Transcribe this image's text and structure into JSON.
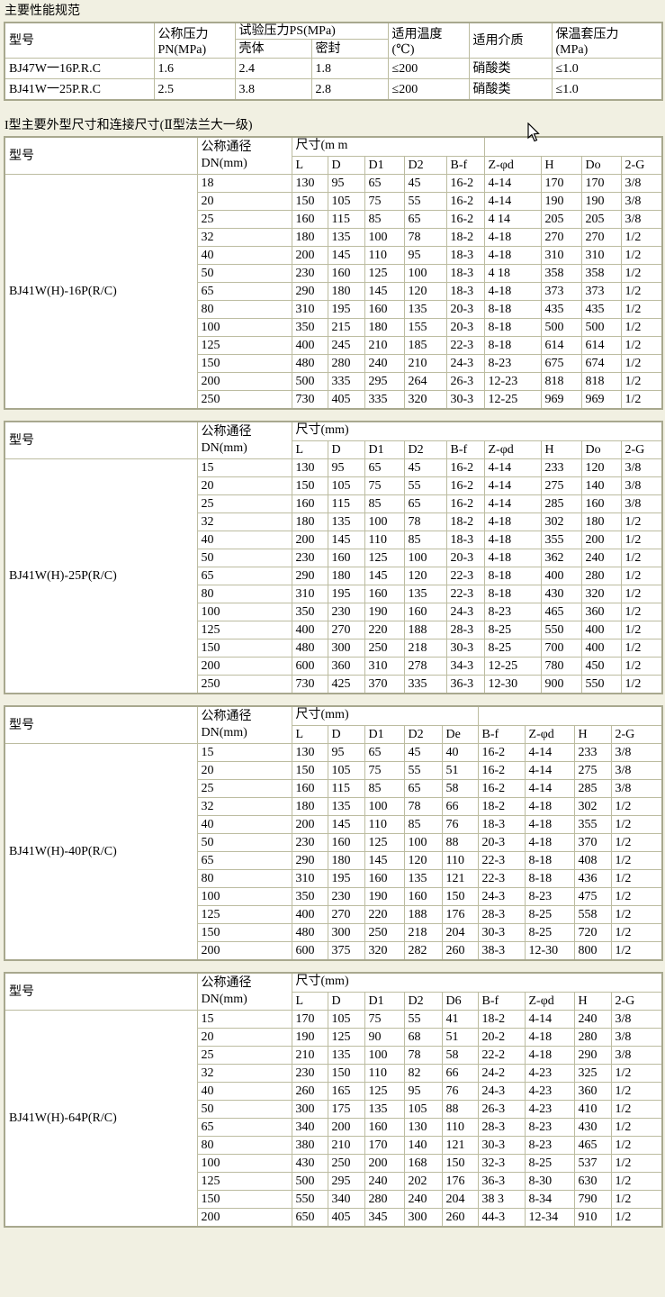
{
  "titles": {
    "main": "主要性能规范",
    "section": "I型主要外型尺寸和连接尺寸(Ⅱ型法兰大一级)"
  },
  "performance": {
    "headers": {
      "model": "型号",
      "nominal_pressure_l1": "公称压力",
      "nominal_pressure_l2": "PN(MPa)",
      "test_pressure": "试验压力PS(MPa)",
      "shell": "壳体",
      "seal": "密封",
      "temp_l1": "适用温度",
      "temp_l2": "(℃)",
      "medium": "适用介质",
      "jacket_l1": "保温套压力",
      "jacket_l2": "(MPa)"
    },
    "rows": [
      [
        "BJ47W一16P.R.C",
        "1.6",
        "2.4",
        "1.8",
        "≤200",
        "硝酸类",
        "≤1.0"
      ],
      [
        "BJ41W一25P.R.C",
        "2.5",
        "3.8",
        "2.8",
        "≤200",
        "硝酸类",
        "≤1.0"
      ]
    ]
  },
  "dim_tables": [
    {
      "model_header": "型号",
      "dn_header_l1": "公称通径",
      "dn_header_l2": "DN(mm)",
      "size_header": "尺寸(m m",
      "size_span": 5,
      "trailing_blank_span": 4,
      "columns": [
        "L",
        "D",
        "D1",
        "D2",
        "B-f",
        "Z-φd",
        "H",
        "Do",
        "2-G"
      ],
      "model": "BJ41W(H)-16P(R/C)",
      "rows": [
        [
          "18",
          "130",
          "95",
          "65",
          "45",
          "16-2",
          "4-14",
          "170",
          "170",
          "3/8"
        ],
        [
          "20",
          "150",
          "105",
          "75",
          "55",
          "16-2",
          "4-14",
          "190",
          "190",
          "3/8"
        ],
        [
          "25",
          "160",
          "115",
          "85",
          "65",
          "16-2",
          "4 14",
          "205",
          "205",
          "3/8"
        ],
        [
          "32",
          "180",
          "135",
          "100",
          "78",
          "18-2",
          "4-18",
          "270",
          "270",
          "1/2"
        ],
        [
          "40",
          "200",
          "145",
          "110",
          "95",
          "18-3",
          "4-18",
          "310",
          "310",
          "1/2"
        ],
        [
          "50",
          "230",
          "160",
          "125",
          "100",
          "18-3",
          "4 18",
          "358",
          "358",
          "1/2"
        ],
        [
          "65",
          "290",
          "180",
          "145",
          "120",
          "18-3",
          "4-18",
          "373",
          "373",
          "1/2"
        ],
        [
          "80",
          "310",
          "195",
          "160",
          "135",
          "20-3",
          "8-18",
          "435",
          "435",
          "1/2"
        ],
        [
          "100",
          "350",
          "215",
          "180",
          "155",
          "20-3",
          "8-18",
          "500",
          "500",
          "1/2"
        ],
        [
          "125",
          "400",
          "245",
          "210",
          "185",
          "22-3",
          "8-18",
          "614",
          "614",
          "1/2"
        ],
        [
          "150",
          "480",
          "280",
          "240",
          "210",
          "24-3",
          "8-23",
          "675",
          "674",
          "1/2"
        ],
        [
          "200",
          "500",
          "335",
          "295",
          "264",
          "26-3",
          "12-23",
          "818",
          "818",
          "1/2"
        ],
        [
          "250",
          "730",
          "405",
          "335",
          "320",
          "30-3",
          "12-25",
          "969",
          "969",
          "1/2"
        ]
      ]
    },
    {
      "model_header": "型号",
      "dn_header_l1": "公称通径",
      "dn_header_l2": "DN(mm)",
      "size_header": "尺寸(mm)",
      "size_span": 9,
      "trailing_blank_span": 0,
      "columns": [
        "L",
        "D",
        "D1",
        "D2",
        "B-f",
        "Z-φd",
        "H",
        "Do",
        "2-G"
      ],
      "model": "BJ41W(H)-25P(R/C)",
      "rows": [
        [
          "15",
          "130",
          "95",
          "65",
          "45",
          "16-2",
          "4-14",
          "233",
          "120",
          "3/8"
        ],
        [
          "20",
          "150",
          "105",
          "75",
          "55",
          "16-2",
          "4-14",
          "275",
          "140",
          "3/8"
        ],
        [
          "25",
          "160",
          "115",
          "85",
          "65",
          "16-2",
          "4-14",
          "285",
          "160",
          "3/8"
        ],
        [
          "32",
          "180",
          "135",
          "100",
          "78",
          "18-2",
          "4-18",
          "302",
          "180",
          "1/2"
        ],
        [
          "40",
          "200",
          "145",
          "110",
          "85",
          "18-3",
          "4-18",
          "355",
          "200",
          "1/2"
        ],
        [
          "50",
          "230",
          "160",
          "125",
          "100",
          "20-3",
          "4-18",
          "362",
          "240",
          "1/2"
        ],
        [
          "65",
          "290",
          "180",
          "145",
          "120",
          "22-3",
          "8-18",
          "400",
          "280",
          "1/2"
        ],
        [
          "80",
          "310",
          "195",
          "160",
          "135",
          "22-3",
          "8-18",
          "430",
          "320",
          "1/2"
        ],
        [
          "100",
          "350",
          "230",
          "190",
          "160",
          "24-3",
          "8-23",
          "465",
          "360",
          "1/2"
        ],
        [
          "125",
          "400",
          "270",
          "220",
          "188",
          "28-3",
          "8-25",
          "550",
          "400",
          "1/2"
        ],
        [
          "150",
          "480",
          "300",
          "250",
          "218",
          "30-3",
          "8-25",
          "700",
          "400",
          "1/2"
        ],
        [
          "200",
          "600",
          "360",
          "310",
          "278",
          "34-3",
          "12-25",
          "780",
          "450",
          "1/2"
        ],
        [
          "250",
          "730",
          "425",
          "370",
          "335",
          "36-3",
          "12-30",
          "900",
          "550",
          "1/2"
        ]
      ]
    },
    {
      "model_header": "型号",
      "dn_header_l1": "公称通径",
      "dn_header_l2": "DN(mm)",
      "size_header": "尺寸(mm)",
      "size_span": 5,
      "trailing_blank_span": 4,
      "columns": [
        "L",
        "D",
        "D1",
        "D2",
        "De",
        "B-f",
        "Z-φd",
        "H",
        "2-G"
      ],
      "model": "BJ41W(H)-40P(R/C)",
      "rows": [
        [
          "15",
          "130",
          "95",
          "65",
          "45",
          "40",
          "16-2",
          "4-14",
          "233",
          "3/8"
        ],
        [
          "20",
          "150",
          "105",
          "75",
          "55",
          "51",
          "16-2",
          "4-14",
          "275",
          "3/8"
        ],
        [
          "25",
          "160",
          "115",
          "85",
          "65",
          "58",
          "16-2",
          "4-14",
          "285",
          "3/8"
        ],
        [
          "32",
          "180",
          "135",
          "100",
          "78",
          "66",
          "18-2",
          "4-18",
          "302",
          "1/2"
        ],
        [
          "40",
          "200",
          "145",
          "110",
          "85",
          "76",
          "18-3",
          "4-18",
          "355",
          "1/2"
        ],
        [
          "50",
          "230",
          "160",
          "125",
          "100",
          "88",
          "20-3",
          "4-18",
          "370",
          "1/2"
        ],
        [
          "65",
          "290",
          "180",
          "145",
          "120",
          "110",
          "22-3",
          "8-18",
          "408",
          "1/2"
        ],
        [
          "80",
          "310",
          "195",
          "160",
          "135",
          "121",
          "22-3",
          "8-18",
          "436",
          "1/2"
        ],
        [
          "100",
          "350",
          "230",
          "190",
          "160",
          "150",
          "24-3",
          "8-23",
          "475",
          "1/2"
        ],
        [
          "125",
          "400",
          "270",
          "220",
          "188",
          "176",
          "28-3",
          "8-25",
          "558",
          "1/2"
        ],
        [
          "150",
          "480",
          "300",
          "250",
          "218",
          "204",
          "30-3",
          "8-25",
          "720",
          "1/2"
        ],
        [
          "200",
          "600",
          "375",
          "320",
          "282",
          "260",
          "38-3",
          "12-30",
          "800",
          "1/2"
        ]
      ]
    },
    {
      "model_header": "型号",
      "dn_header_l1": "公称通径",
      "dn_header_l2": "DN(mm)",
      "size_header": "尺寸(mm)",
      "size_span": 9,
      "trailing_blank_span": 0,
      "columns": [
        "L",
        "D",
        "D1",
        "D2",
        "D6",
        "B-f",
        "Z-φd",
        "H",
        "2-G"
      ],
      "model": "BJ41W(H)-64P(R/C)",
      "rows": [
        [
          "15",
          "170",
          "105",
          "75",
          "55",
          "41",
          "18-2",
          "4-14",
          "240",
          "3/8"
        ],
        [
          "20",
          "190",
          "125",
          "90",
          "68",
          "51",
          "20-2",
          "4-18",
          "280",
          "3/8"
        ],
        [
          "25",
          "210",
          "135",
          "100",
          "78",
          "58",
          "22-2",
          "4-18",
          "290",
          "3/8"
        ],
        [
          "32",
          "230",
          "150",
          "110",
          "82",
          "66",
          "24-2",
          "4-23",
          "325",
          "1/2"
        ],
        [
          "40",
          "260",
          "165",
          "125",
          "95",
          "76",
          "24-3",
          "4-23",
          "360",
          "1/2"
        ],
        [
          "50",
          "300",
          "175",
          "135",
          "105",
          "88",
          "26-3",
          "4-23",
          "410",
          "1/2"
        ],
        [
          "65",
          "340",
          "200",
          "160",
          "130",
          "110",
          "28-3",
          "8-23",
          "430",
          "1/2"
        ],
        [
          "80",
          "380",
          "210",
          "170",
          "140",
          "121",
          "30-3",
          "8-23",
          "465",
          "1/2"
        ],
        [
          "100",
          "430",
          "250",
          "200",
          "168",
          "150",
          "32-3",
          "8-25",
          "537",
          "1/2"
        ],
        [
          "125",
          "500",
          "295",
          "240",
          "202",
          "176",
          "36-3",
          "8-30",
          "630",
          "1/2"
        ],
        [
          "150",
          "550",
          "340",
          "280",
          "240",
          "204",
          "38 3",
          "8-34",
          "790",
          "1/2"
        ],
        [
          "200",
          "650",
          "405",
          "345",
          "300",
          "260",
          "44-3",
          "12-34",
          "910",
          "1/2"
        ]
      ]
    }
  ]
}
